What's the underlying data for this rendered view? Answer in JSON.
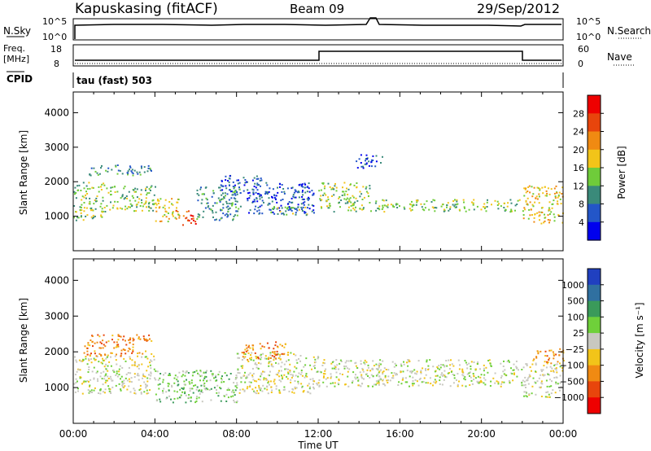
{
  "header": {
    "station": "Kapuskasing (fitACF)",
    "beam": "Beam 09",
    "date": "29/Sep/2012"
  },
  "top_panels": {
    "nsky_label": "N.Sky",
    "nsky_ticks": [
      "10^5",
      "10^0"
    ],
    "nsearch_label": "N.Search",
    "nsearch_ticks": [
      "10^5",
      "10^0"
    ],
    "freq_label_1": "Freq.",
    "freq_label_2": "[MHz]",
    "freq_ticks": [
      "18",
      "8"
    ],
    "nave_label": "Nave",
    "nave_ticks": [
      "60",
      "0"
    ],
    "cpid_label": "CPID",
    "cpid_value": "tau (fast) 503"
  },
  "chart_data": [
    {
      "type": "heatmap",
      "name": "power",
      "ylabel": "Slant Range [km]",
      "ylim": [
        0,
        4600
      ],
      "yticks": [
        "1000",
        "2000",
        "3000",
        "4000"
      ],
      "xlim": [
        0,
        24
      ],
      "colorbar_label": "Power [dB]",
      "colorbar_ticks": [
        "4",
        "8",
        "12",
        "16",
        "20",
        "24",
        "28"
      ],
      "colors": [
        "#0000ee",
        "#2356c8",
        "#3a8a7a",
        "#6fcc3a",
        "#f2c419",
        "#f08a12",
        "#e8450c",
        "#ee0000"
      ],
      "bands": [
        {
          "t0": 0.0,
          "t1": 1.5,
          "r0": 900,
          "r1": 2000,
          "level": 3
        },
        {
          "t0": 1.5,
          "t1": 4.0,
          "r0": 1150,
          "r1": 1900,
          "level": 3
        },
        {
          "t0": 0.7,
          "t1": 3.8,
          "r0": 2200,
          "r1": 2500,
          "level": 2
        },
        {
          "t0": 4.0,
          "t1": 5.2,
          "r0": 850,
          "r1": 1550,
          "level": 4
        },
        {
          "t0": 5.0,
          "t1": 6.0,
          "r0": 750,
          "r1": 1200,
          "level": 6
        },
        {
          "t0": 6.0,
          "t1": 8.2,
          "r0": 900,
          "r1": 1900,
          "level": 2
        },
        {
          "t0": 7.2,
          "t1": 9.2,
          "r0": 1500,
          "r1": 2200,
          "level": 1
        },
        {
          "t0": 8.5,
          "t1": 11.8,
          "r0": 1050,
          "r1": 2000,
          "level": 1
        },
        {
          "t0": 9.5,
          "t1": 11.5,
          "r0": 1050,
          "r1": 1300,
          "level": 3
        },
        {
          "t0": 12.0,
          "t1": 14.5,
          "r0": 1150,
          "r1": 2000,
          "level": 3
        },
        {
          "t0": 14.5,
          "t1": 21.9,
          "r0": 1150,
          "r1": 1500,
          "level": 3
        },
        {
          "t0": 22.0,
          "t1": 24.0,
          "r0": 800,
          "r1": 1900,
          "level": 4
        },
        {
          "t0": 13.8,
          "t1": 15.2,
          "r0": 2400,
          "r1": 2800,
          "level": 1
        }
      ]
    },
    {
      "type": "heatmap",
      "name": "velocity",
      "xlabel": "Time UT",
      "ylabel": "Slant Range [km]",
      "ylim": [
        0,
        4600
      ],
      "yticks": [
        "1000",
        "2000",
        "3000",
        "4000"
      ],
      "xlim": [
        0,
        24
      ],
      "xticks": [
        "00:00",
        "04:00",
        "08:00",
        "12:00",
        "16:00",
        "20:00",
        "00:00"
      ],
      "colorbar_label": "Velocity [m s⁻¹]",
      "colorbar_ticks": [
        "1000",
        "500",
        "100",
        "25",
        "−25",
        "−100",
        "−500",
        "−1000"
      ],
      "colors": [
        "#2040c0",
        "#3070a0",
        "#3a9a5a",
        "#6fd03a",
        "#c8c8c0",
        "#f2c419",
        "#f08a12",
        "#e8450c",
        "#ee0000"
      ],
      "bands": [
        {
          "t0": 0.0,
          "t1": 4.0,
          "r0": 850,
          "r1": 1900,
          "level": 4
        },
        {
          "t0": 0.5,
          "t1": 3.8,
          "r0": 1900,
          "r1": 2500,
          "level": 6
        },
        {
          "t0": 4.0,
          "t1": 8.0,
          "r0": 600,
          "r1": 1500,
          "level": 3
        },
        {
          "t0": 8.0,
          "t1": 12.0,
          "r0": 850,
          "r1": 2000,
          "level": 4
        },
        {
          "t0": 8.2,
          "t1": 10.5,
          "r0": 1800,
          "r1": 2300,
          "level": 6
        },
        {
          "t0": 12.0,
          "t1": 22.0,
          "r0": 1050,
          "r1": 1800,
          "level": 4
        },
        {
          "t0": 22.0,
          "t1": 24.0,
          "r0": 750,
          "r1": 1700,
          "level": 4
        },
        {
          "t0": 22.5,
          "t1": 24.0,
          "r0": 1700,
          "r1": 2100,
          "level": 6
        }
      ]
    }
  ]
}
